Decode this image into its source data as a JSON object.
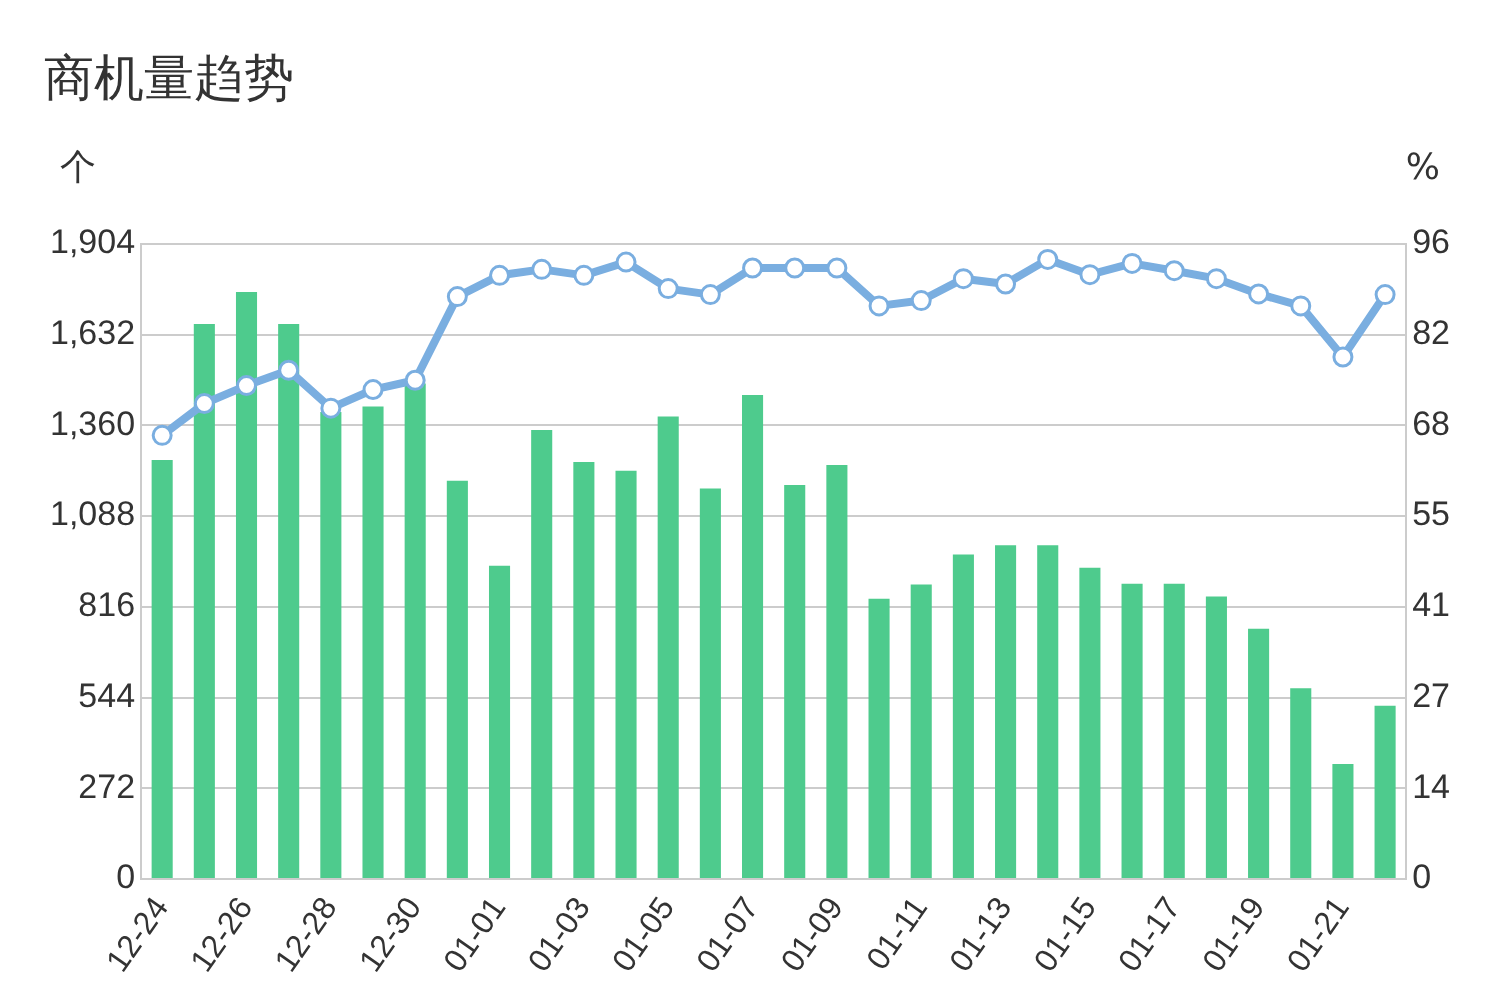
{
  "chart_data": {
    "type": "bar",
    "title": "商机量趋势",
    "ylabel": "个",
    "y2label": "%",
    "categories": [
      "12-24",
      null,
      "12-26",
      null,
      "12-28",
      null,
      "12-30",
      null,
      "01-01",
      null,
      "01-03",
      null,
      "01-05",
      null,
      "01-07",
      null,
      "01-09",
      null,
      "01-11",
      null,
      "01-13",
      null,
      "01-15",
      null,
      "01-17",
      null,
      "01-19",
      null,
      "01-21",
      null
    ],
    "series": [
      {
        "color": "#4ecb8d",
        "values": [
          1256,
          1664,
          1760,
          1664,
          1400,
          1417,
          1486,
          1194,
          939,
          1346,
          1250,
          1224,
          1387,
          1171,
          1451,
          1181,
          1241,
          840,
          883,
          973,
          1001,
          1001,
          933,
          885,
          885,
          847,
          750,
          572,
          345,
          519
        ]
      },
      {
        "type": "line",
        "axis": "y2",
        "color": "#7aaee0",
        "values": [
          66.8,
          71.6,
          74.3,
          76.6,
          70.9,
          73.7,
          75.1,
          87.7,
          90.9,
          91.8,
          90.9,
          92.9,
          88.9,
          88.0,
          92.0,
          92.0,
          92.0,
          86.3,
          87.1,
          90.4,
          89.6,
          93.3,
          91.0,
          92.7,
          91.6,
          90.4,
          88.1,
          86.3,
          78.6,
          88.0
        ]
      }
    ],
    "ylim": [
      0,
      1904
    ],
    "yticks": [
      0,
      272,
      544,
      816,
      {
        "value": 1088,
        "label": "1,088"
      },
      {
        "value": 1360,
        "label": "1,360"
      },
      {
        "value": 1632,
        "label": "1,632"
      },
      {
        "value": 1904,
        "label": "1,904"
      }
    ],
    "y2lim": [
      0,
      95.62
    ],
    "y2ticks": [
      0,
      {
        "value": 13.66,
        "label": "14"
      },
      {
        "value": 27.32,
        "label": "27"
      },
      {
        "value": 40.98,
        "label": "41"
      },
      {
        "value": 54.64,
        "label": "55"
      },
      {
        "value": 68.3,
        "label": "68"
      },
      {
        "value": 81.96,
        "label": "82"
      },
      {
        "value": 95.62,
        "label": "96"
      }
    ],
    "grid": "y",
    "legend": false,
    "marker": "circle"
  }
}
